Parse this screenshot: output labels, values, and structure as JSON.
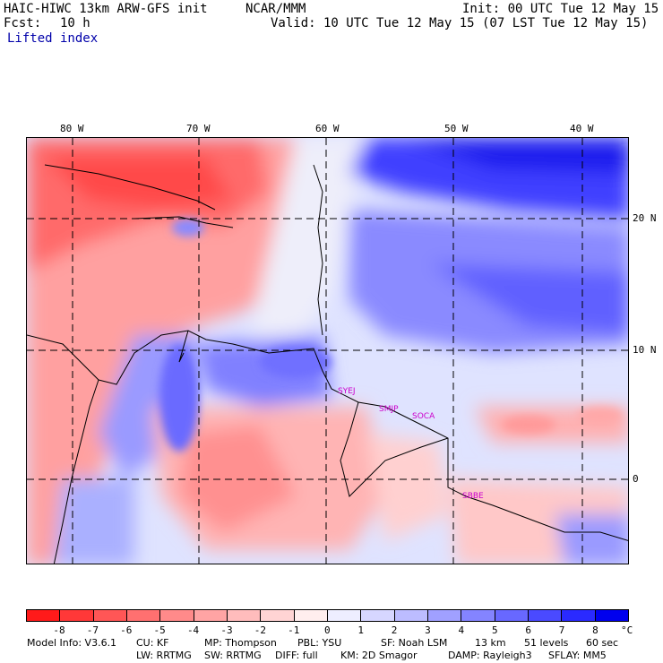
{
  "header": {
    "model": "HAIC-HIWC 13km ARW-GFS init",
    "org": "NCAR/MMM",
    "init": "Init: 00 UTC Tue 12 May 15",
    "fcst_label": "Fcst:",
    "fcst_value": "10 h",
    "valid": "Valid: 10 UTC Tue 12 May 15 (07 LST Tue 12 May 15)",
    "field": "Lifted index"
  },
  "map": {
    "lon_labels": [
      "80 W",
      "70 W",
      "60 W",
      "50 W",
      "40 W"
    ],
    "lat_labels": [
      "20 N",
      "10 N",
      "0"
    ],
    "sites": [
      "SYEJ",
      "SMJP",
      "SOCA",
      "SBBE"
    ]
  },
  "colorbar": {
    "ticks": [
      "-8",
      "-7",
      "-6",
      "-5",
      "-4",
      "-3",
      "-2",
      "-1",
      "0",
      "1",
      "2",
      "3",
      "4",
      "5",
      "6",
      "7",
      "8"
    ],
    "unit": "°C",
    "colors": [
      "#ff1a1a",
      "#ff3838",
      "#ff5656",
      "#ff7070",
      "#ff8a8a",
      "#ffa4a4",
      "#ffbcbc",
      "#ffd4d4",
      "#ffeeee",
      "#eeeeff",
      "#d6d6ff",
      "#bcbcff",
      "#a0a0ff",
      "#8484ff",
      "#6868ff",
      "#4a4aff",
      "#2a2aff",
      "#0000ee"
    ]
  },
  "footer": {
    "line1": [
      "Model Info: V3.6.1",
      "CU: KF",
      "MP: Thompson",
      "PBL: YSU",
      "SF: Noah LSM",
      "13 km",
      "51 levels",
      "60 sec"
    ],
    "line2": [
      "LW: RRTMG",
      "SW: RRTMG",
      "DIFF: full",
      "KM: 2D Smagor",
      "DAMP: Rayleigh3",
      "SFLAY: MM5"
    ]
  }
}
